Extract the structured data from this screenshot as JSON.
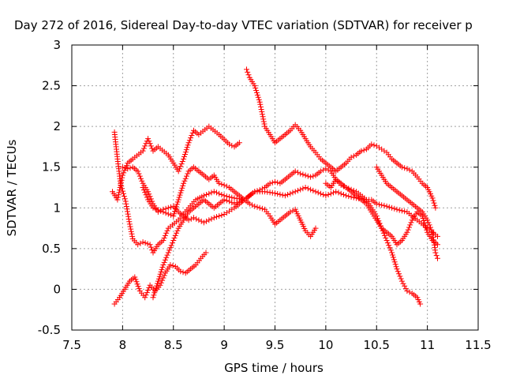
{
  "chart_data": {
    "type": "scatter",
    "title": "Day 272 of 2016, Sidereal Day-to-day VTEC variation (SDTVAR) for receiver p",
    "xlabel": "GPS time / hours",
    "ylabel": "SDTVAR / TECUs",
    "xlim": [
      7.5,
      11.5
    ],
    "ylim": [
      -0.5,
      3
    ],
    "xticks": [
      "7.5",
      "8",
      "8.5",
      "9",
      "9.5",
      "10",
      "10.5",
      "11",
      "11.5"
    ],
    "yticks": [
      "-0.5",
      "0",
      "0.5",
      "1",
      "1.5",
      "2",
      "2.5",
      "3"
    ],
    "grid": true,
    "marker": "plus",
    "color": "#ff0000",
    "series": [
      {
        "points": [
          [
            7.92,
            1.93
          ],
          [
            7.95,
            1.6
          ],
          [
            7.98,
            1.3
          ],
          [
            8.03,
            1.08
          ],
          [
            8.07,
            0.8
          ],
          [
            8.1,
            0.62
          ],
          [
            8.15,
            0.55
          ],
          [
            8.2,
            0.58
          ],
          [
            8.27,
            0.55
          ],
          [
            8.3,
            0.45
          ],
          [
            8.35,
            0.55
          ],
          [
            8.4,
            0.6
          ],
          [
            8.45,
            0.75
          ],
          [
            8.55,
            0.85
          ],
          [
            8.65,
            1.0
          ],
          [
            8.72,
            1.1
          ],
          [
            8.8,
            1.15
          ],
          [
            8.9,
            1.2
          ],
          [
            9.0,
            1.15
          ],
          [
            9.1,
            1.12
          ],
          [
            9.2,
            1.1
          ],
          [
            9.3,
            1.2
          ],
          [
            9.4,
            1.2
          ],
          [
            9.5,
            1.18
          ],
          [
            9.6,
            1.15
          ],
          [
            9.7,
            1.2
          ],
          [
            9.8,
            1.25
          ],
          [
            9.9,
            1.2
          ],
          [
            10.0,
            1.15
          ],
          [
            10.1,
            1.2
          ],
          [
            10.2,
            1.15
          ],
          [
            10.3,
            1.12
          ],
          [
            10.4,
            1.1
          ],
          [
            10.45,
            1.1
          ],
          [
            10.5,
            1.05
          ],
          [
            10.6,
            1.02
          ],
          [
            10.7,
            0.98
          ],
          [
            10.8,
            0.95
          ],
          [
            10.9,
            0.85
          ],
          [
            11.0,
            0.75
          ],
          [
            11.1,
            0.65
          ]
        ]
      },
      {
        "points": [
          [
            7.9,
            1.2
          ],
          [
            7.95,
            1.1
          ],
          [
            8.0,
            1.4
          ],
          [
            8.05,
            1.55
          ],
          [
            8.1,
            1.6
          ],
          [
            8.2,
            1.7
          ],
          [
            8.25,
            1.85
          ],
          [
            8.3,
            1.7
          ],
          [
            8.35,
            1.75
          ],
          [
            8.45,
            1.65
          ],
          [
            8.5,
            1.55
          ],
          [
            8.55,
            1.45
          ],
          [
            8.6,
            1.6
          ],
          [
            8.65,
            1.8
          ],
          [
            8.7,
            1.95
          ],
          [
            8.75,
            1.9
          ],
          [
            8.85,
            2.0
          ],
          [
            8.95,
            1.9
          ],
          [
            9.05,
            1.78
          ],
          [
            9.1,
            1.75
          ],
          [
            9.15,
            1.8
          ]
        ]
      },
      {
        "points": [
          [
            9.22,
            2.7
          ],
          [
            9.25,
            2.6
          ],
          [
            9.3,
            2.5
          ],
          [
            9.35,
            2.3
          ],
          [
            9.4,
            2.0
          ],
          [
            9.45,
            1.9
          ],
          [
            9.5,
            1.8
          ],
          [
            9.55,
            1.85
          ],
          [
            9.6,
            1.9
          ],
          [
            9.65,
            1.95
          ],
          [
            9.7,
            2.02
          ],
          [
            9.75,
            1.95
          ],
          [
            9.8,
            1.85
          ],
          [
            9.85,
            1.75
          ],
          [
            9.9,
            1.68
          ],
          [
            9.95,
            1.6
          ],
          [
            10.0,
            1.55
          ],
          [
            10.05,
            1.5
          ],
          [
            10.1,
            1.45
          ],
          [
            10.15,
            1.5
          ],
          [
            10.2,
            1.55
          ],
          [
            10.25,
            1.62
          ],
          [
            10.3,
            1.65
          ],
          [
            10.35,
            1.7
          ],
          [
            10.4,
            1.72
          ],
          [
            10.45,
            1.78
          ],
          [
            10.5,
            1.76
          ],
          [
            10.55,
            1.72
          ],
          [
            10.6,
            1.68
          ],
          [
            10.65,
            1.6
          ],
          [
            10.7,
            1.55
          ],
          [
            10.75,
            1.5
          ],
          [
            10.8,
            1.48
          ],
          [
            10.85,
            1.45
          ],
          [
            10.9,
            1.38
          ],
          [
            10.95,
            1.3
          ],
          [
            11.0,
            1.25
          ],
          [
            11.05,
            1.12
          ],
          [
            11.08,
            1.0
          ]
        ]
      },
      {
        "points": [
          [
            7.92,
            -0.18
          ],
          [
            7.97,
            -0.1
          ],
          [
            8.02,
            0.0
          ],
          [
            8.07,
            0.1
          ],
          [
            8.12,
            0.15
          ],
          [
            8.17,
            -0.02
          ],
          [
            8.22,
            -0.1
          ],
          [
            8.27,
            0.05
          ],
          [
            8.32,
            -0.02
          ],
          [
            8.37,
            0.05
          ],
          [
            8.42,
            0.2
          ],
          [
            8.47,
            0.3
          ],
          [
            8.52,
            0.28
          ],
          [
            8.57,
            0.22
          ],
          [
            8.62,
            0.2
          ],
          [
            8.67,
            0.25
          ],
          [
            8.72,
            0.3
          ],
          [
            8.77,
            0.38
          ],
          [
            8.82,
            0.45
          ]
        ]
      },
      {
        "points": [
          [
            8.0,
            1.5
          ],
          [
            8.05,
            1.48
          ],
          [
            8.1,
            1.5
          ],
          [
            8.15,
            1.45
          ],
          [
            8.2,
            1.3
          ],
          [
            8.25,
            1.2
          ],
          [
            8.3,
            1.05
          ],
          [
            8.35,
            0.95
          ],
          [
            8.4,
            0.98
          ],
          [
            8.45,
            1.0
          ],
          [
            8.5,
            1.02
          ],
          [
            8.55,
            0.95
          ],
          [
            8.6,
            0.9
          ],
          [
            8.65,
            0.85
          ],
          [
            8.7,
            0.88
          ],
          [
            8.75,
            0.85
          ],
          [
            8.8,
            0.82
          ],
          [
            8.85,
            0.85
          ],
          [
            8.9,
            0.88
          ],
          [
            8.95,
            0.9
          ],
          [
            9.0,
            0.92
          ],
          [
            9.05,
            0.96
          ],
          [
            9.1,
            1.0
          ],
          [
            9.15,
            1.05
          ],
          [
            9.2,
            1.1
          ],
          [
            9.25,
            1.15
          ],
          [
            9.3,
            1.2
          ],
          [
            9.35,
            1.22
          ],
          [
            9.4,
            1.25
          ],
          [
            9.45,
            1.3
          ],
          [
            9.5,
            1.32
          ],
          [
            9.55,
            1.3
          ],
          [
            9.6,
            1.35
          ],
          [
            9.65,
            1.4
          ],
          [
            9.7,
            1.45
          ],
          [
            9.75,
            1.42
          ],
          [
            9.8,
            1.4
          ],
          [
            9.85,
            1.38
          ],
          [
            9.9,
            1.4
          ],
          [
            9.95,
            1.45
          ],
          [
            10.0,
            1.48
          ],
          [
            10.05,
            1.45
          ],
          [
            10.1,
            1.35
          ],
          [
            10.15,
            1.28
          ],
          [
            10.2,
            1.25
          ],
          [
            10.3,
            1.2
          ],
          [
            10.4,
            1.1
          ],
          [
            10.45,
            1.0
          ],
          [
            10.5,
            0.9
          ],
          [
            10.55,
            0.75
          ],
          [
            10.6,
            0.6
          ],
          [
            10.65,
            0.45
          ],
          [
            10.7,
            0.25
          ],
          [
            10.75,
            0.1
          ],
          [
            10.8,
            -0.02
          ],
          [
            10.85,
            -0.05
          ],
          [
            10.9,
            -0.1
          ],
          [
            10.93,
            -0.18
          ]
        ]
      },
      {
        "points": [
          [
            8.2,
            1.25
          ],
          [
            8.25,
            1.1
          ],
          [
            8.3,
            1.0
          ],
          [
            8.4,
            0.95
          ],
          [
            8.5,
            0.9
          ],
          [
            8.55,
            1.1
          ],
          [
            8.6,
            1.3
          ],
          [
            8.65,
            1.45
          ],
          [
            8.7,
            1.5
          ],
          [
            8.75,
            1.45
          ],
          [
            8.8,
            1.4
          ],
          [
            8.85,
            1.35
          ],
          [
            8.9,
            1.4
          ],
          [
            8.95,
            1.3
          ],
          [
            9.0,
            1.28
          ],
          [
            9.05,
            1.25
          ],
          [
            9.1,
            1.2
          ],
          [
            9.15,
            1.15
          ],
          [
            9.2,
            1.1
          ],
          [
            9.25,
            1.05
          ],
          [
            9.3,
            1.02
          ],
          [
            9.35,
            1.0
          ],
          [
            9.4,
            0.98
          ],
          [
            9.45,
            0.9
          ],
          [
            9.5,
            0.8
          ],
          [
            9.55,
            0.85
          ],
          [
            9.6,
            0.9
          ],
          [
            9.65,
            0.95
          ],
          [
            9.7,
            0.98
          ],
          [
            9.75,
            0.85
          ],
          [
            9.8,
            0.72
          ],
          [
            9.85,
            0.65
          ],
          [
            9.9,
            0.75
          ]
        ]
      },
      {
        "points": [
          [
            8.3,
            -0.1
          ],
          [
            8.35,
            0.1
          ],
          [
            8.4,
            0.3
          ],
          [
            8.45,
            0.45
          ],
          [
            8.5,
            0.6
          ],
          [
            8.55,
            0.75
          ],
          [
            8.6,
            0.85
          ],
          [
            8.65,
            0.95
          ],
          [
            8.7,
            1.0
          ],
          [
            8.75,
            1.05
          ],
          [
            8.8,
            1.1
          ],
          [
            8.85,
            1.05
          ],
          [
            8.9,
            1.0
          ],
          [
            8.95,
            1.05
          ],
          [
            9.0,
            1.1
          ],
          [
            9.05,
            1.08
          ],
          [
            9.1,
            1.05
          ],
          [
            9.15,
            1.08
          ],
          [
            9.2,
            1.1
          ],
          [
            9.25,
            1.15
          ]
        ]
      },
      {
        "points": [
          [
            10.0,
            1.3
          ],
          [
            10.05,
            1.25
          ],
          [
            10.1,
            1.35
          ],
          [
            10.15,
            1.3
          ],
          [
            10.2,
            1.25
          ],
          [
            10.25,
            1.2
          ],
          [
            10.3,
            1.15
          ],
          [
            10.35,
            1.1
          ],
          [
            10.4,
            1.05
          ],
          [
            10.45,
            0.95
          ],
          [
            10.5,
            0.85
          ],
          [
            10.55,
            0.75
          ],
          [
            10.6,
            0.7
          ],
          [
            10.65,
            0.65
          ],
          [
            10.7,
            0.55
          ],
          [
            10.75,
            0.6
          ],
          [
            10.8,
            0.7
          ],
          [
            10.85,
            0.85
          ],
          [
            10.9,
            0.95
          ],
          [
            10.95,
            0.9
          ],
          [
            11.0,
            0.7
          ],
          [
            11.05,
            0.6
          ],
          [
            11.1,
            0.55
          ]
        ]
      },
      {
        "points": [
          [
            10.5,
            1.5
          ],
          [
            10.55,
            1.4
          ],
          [
            10.6,
            1.3
          ],
          [
            10.65,
            1.25
          ],
          [
            10.7,
            1.2
          ],
          [
            10.75,
            1.15
          ],
          [
            10.8,
            1.1
          ],
          [
            10.85,
            1.05
          ],
          [
            10.9,
            1.0
          ],
          [
            10.95,
            0.95
          ],
          [
            11.0,
            0.85
          ],
          [
            11.05,
            0.7
          ],
          [
            11.08,
            0.45
          ],
          [
            11.1,
            0.38
          ]
        ]
      }
    ]
  }
}
